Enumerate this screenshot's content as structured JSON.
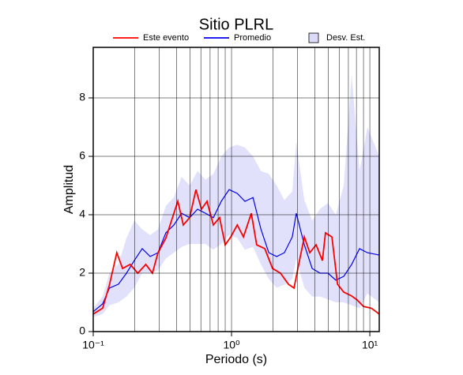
{
  "chart_data": {
    "type": "line",
    "title": "Sitio PLRL",
    "x_label": "Periodo (s)",
    "y_label": "Amplitud",
    "x_scale": "log",
    "xlim": [
      0.1,
      11.7
    ],
    "ylim": [
      0,
      9.73
    ],
    "xticks": [
      {
        "value": 0.1,
        "label": "10⁻¹"
      },
      {
        "value": 1,
        "label": "10⁰"
      },
      {
        "value": 10,
        "label": "10¹"
      }
    ],
    "yticks": [
      0,
      2,
      4,
      6,
      8
    ],
    "grid": true,
    "series": [
      {
        "name": "Este evento",
        "color": "#ff0000",
        "x": [
          0.1,
          0.117,
          0.131,
          0.148,
          0.163,
          0.185,
          0.21,
          0.24,
          0.268,
          0.294,
          0.335,
          0.383,
          0.409,
          0.448,
          0.498,
          0.553,
          0.606,
          0.665,
          0.739,
          0.82,
          0.9,
          0.987,
          1.1,
          1.22,
          1.39,
          1.52,
          1.74,
          1.98,
          2.26,
          2.58,
          2.83,
          3.06,
          3.36,
          3.68,
          4.09,
          4.54,
          4.78,
          5.32,
          5.84,
          6.48,
          7.39,
          8.11,
          9.0,
          10.26,
          11.7
        ],
        "values": [
          0.6,
          0.8,
          1.6,
          2.7,
          2.16,
          2.3,
          2.0,
          2.3,
          2.0,
          2.7,
          3.2,
          4.05,
          4.46,
          3.65,
          3.9,
          4.86,
          4.19,
          4.46,
          3.65,
          3.9,
          2.97,
          3.24,
          3.65,
          3.24,
          4.05,
          2.97,
          2.84,
          2.16,
          2.0,
          1.62,
          1.49,
          2.3,
          3.24,
          2.7,
          2.97,
          2.43,
          3.38,
          3.24,
          1.62,
          1.35,
          1.22,
          1.08,
          0.86,
          0.8,
          0.6
        ]
      },
      {
        "name": "Promedio",
        "color": "#0000ee",
        "x": [
          0.1,
          0.117,
          0.131,
          0.152,
          0.174,
          0.198,
          0.226,
          0.258,
          0.294,
          0.335,
          0.383,
          0.436,
          0.498,
          0.568,
          0.648,
          0.739,
          0.843,
          0.961,
          1.1,
          1.25,
          1.43,
          1.63,
          1.86,
          2.12,
          2.41,
          2.75,
          2.94,
          3.36,
          3.83,
          4.37,
          4.98,
          5.68,
          6.48,
          7.39,
          8.43,
          9.61,
          11.7
        ],
        "values": [
          0.68,
          0.95,
          1.49,
          1.62,
          2.0,
          2.43,
          2.84,
          2.57,
          2.7,
          3.38,
          3.65,
          4.05,
          3.9,
          4.19,
          4.05,
          3.9,
          4.46,
          4.86,
          4.73,
          4.46,
          4.59,
          3.51,
          2.7,
          2.57,
          2.7,
          3.24,
          4.05,
          2.97,
          2.16,
          2.0,
          2.0,
          1.76,
          1.89,
          2.3,
          2.84,
          2.7,
          2.62
        ]
      },
      {
        "name": "Desv. Est.",
        "kind": "band",
        "color": "#dcdcfa",
        "x": [
          0.1,
          0.117,
          0.131,
          0.152,
          0.174,
          0.198,
          0.226,
          0.258,
          0.294,
          0.335,
          0.383,
          0.436,
          0.498,
          0.568,
          0.648,
          0.739,
          0.843,
          0.961,
          1.1,
          1.25,
          1.43,
          1.63,
          1.86,
          2.12,
          2.41,
          2.75,
          2.94,
          3.36,
          3.83,
          4.37,
          4.98,
          5.68,
          6.48,
          7.39,
          8.43,
          9.61,
          11.7
        ],
        "upper": [
          0.8,
          1.2,
          2.0,
          2.3,
          3.2,
          3.8,
          3.5,
          3.3,
          3.5,
          4.3,
          4.6,
          5.3,
          5.0,
          5.5,
          5.2,
          5.4,
          6.0,
          6.3,
          6.4,
          6.3,
          6.0,
          5.5,
          5.4,
          5.0,
          4.5,
          4.8,
          6.5,
          4.5,
          3.8,
          4.2,
          4.4,
          4.0,
          5.0,
          8.8,
          5.5,
          7.0,
          6.0
        ],
        "lower": [
          0.5,
          0.6,
          0.9,
          1.0,
          1.2,
          1.5,
          2.0,
          2.0,
          2.1,
          2.5,
          2.7,
          2.9,
          3.0,
          3.0,
          3.0,
          2.8,
          3.0,
          3.3,
          3.2,
          2.8,
          2.9,
          2.3,
          1.8,
          1.5,
          1.6,
          1.8,
          2.5,
          1.5,
          1.2,
          1.2,
          1.1,
          1.0,
          1.0,
          0.9,
          0.8,
          1.3,
          1.0
        ]
      }
    ]
  }
}
